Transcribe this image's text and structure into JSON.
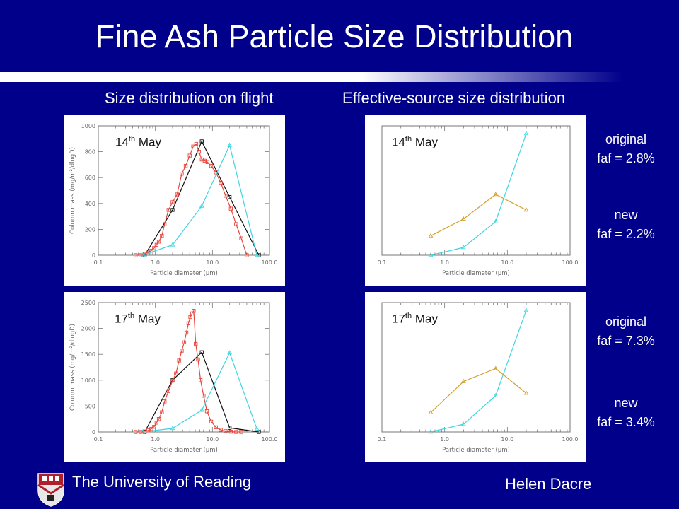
{
  "title": "Fine Ash Particle Size Distribution",
  "headers": {
    "left": "Size distribution on flight",
    "right": "Effective-source size distribution"
  },
  "labels": {
    "may14_num": "14",
    "may14_sup": "th",
    "may14_month": " May",
    "may17_num": "17",
    "may17_sup": "th",
    "may17_month": " May"
  },
  "faf": {
    "a_label": "original",
    "a_value": "faf = 2.8%",
    "b_label": "new",
    "b_value": "faf = 2.2%",
    "c_label": "original",
    "c_value": "faf = 7.3%",
    "d_label": "new",
    "d_value": "faf = 3.4%"
  },
  "footer": {
    "university": "The University of Reading",
    "author": "Helen Dacre"
  },
  "colors": {
    "background": "#00008B",
    "black": "#111111",
    "red": "#E8453C",
    "cyan": "#3ED5E0",
    "orange": "#D4A030"
  },
  "chart_data": [
    {
      "type": "line",
      "date": "14th May",
      "xlabel": "Particle diameter (μm)",
      "ylabel": "Column mass (mg/m²/dlogD)",
      "xscale": "log",
      "xlim": [
        0.1,
        100.0
      ],
      "ylim": [
        0,
        1000
      ],
      "xticks": [
        0.1,
        1.0,
        10.0,
        100.0
      ],
      "xtick_labels": [
        "0.1",
        "1.0",
        "10.0",
        "100.0"
      ],
      "yticks": [
        0,
        200,
        400,
        600,
        800,
        1000
      ],
      "ytick_labels": [
        "0",
        "200",
        "400",
        "600",
        "800",
        "1000"
      ],
      "series": [
        {
          "color": "black",
          "marker": "square",
          "x": [
            0.65,
            2.0,
            6.5,
            20,
            65
          ],
          "y": [
            0,
            350,
            880,
            450,
            0
          ]
        },
        {
          "color": "red",
          "marker": "square",
          "x": [
            0.45,
            0.55,
            0.65,
            0.75,
            0.85,
            0.95,
            1.05,
            1.15,
            1.3,
            1.45,
            1.7,
            2.0,
            2.4,
            2.9,
            3.4,
            4.0,
            4.6,
            5.2,
            5.8,
            6.5,
            7.3,
            8.2,
            9.5,
            11.5,
            14,
            17,
            21,
            26,
            32,
            40
          ],
          "y": [
            0,
            0,
            10,
            20,
            35,
            55,
            80,
            105,
            150,
            240,
            350,
            410,
            470,
            630,
            690,
            770,
            840,
            860,
            800,
            740,
            730,
            720,
            690,
            640,
            560,
            460,
            360,
            240,
            130,
            0
          ]
        },
        {
          "color": "cyan",
          "marker": "triangle",
          "x": [
            0.6,
            2.0,
            6.5,
            20,
            60
          ],
          "y": [
            0,
            80,
            380,
            850,
            0
          ]
        }
      ]
    },
    {
      "type": "line",
      "date": "14th May",
      "xlabel": "Particle diameter (μm)",
      "xscale": "log",
      "xlim": [
        0.1,
        100.0
      ],
      "ylim": [
        0,
        1000
      ],
      "xticks": [
        0.1,
        1.0,
        10.0,
        100.0
      ],
      "xtick_labels": [
        "0.1",
        "1.0",
        "10.0",
        "100.0"
      ],
      "series": [
        {
          "color": "orange",
          "marker": "triangle",
          "x": [
            0.6,
            2.0,
            6.5,
            20
          ],
          "y": [
            150,
            280,
            470,
            350
          ]
        },
        {
          "color": "cyan",
          "marker": "triangle",
          "x": [
            0.6,
            2.0,
            6.5,
            20
          ],
          "y": [
            0,
            60,
            260,
            940
          ]
        }
      ]
    },
    {
      "type": "line",
      "date": "17th May",
      "xlabel": "Particle diameter (μm)",
      "ylabel": "Column mass (mg/m²/dlogD)",
      "xscale": "log",
      "xlim": [
        0.1,
        100.0
      ],
      "ylim": [
        0,
        2500
      ],
      "xticks": [
        0.1,
        1.0,
        10.0,
        100.0
      ],
      "xtick_labels": [
        "0.1",
        "1.0",
        "10.0",
        "100.0"
      ],
      "yticks": [
        0,
        500,
        1000,
        1500,
        2000,
        2500
      ],
      "ytick_labels": [
        "0",
        "500",
        "1000",
        "1500",
        "2000",
        "2500"
      ],
      "series": [
        {
          "color": "black",
          "marker": "square",
          "x": [
            0.65,
            2.0,
            6.5,
            20,
            65
          ],
          "y": [
            0,
            1000,
            1540,
            80,
            0
          ]
        },
        {
          "color": "red",
          "marker": "square",
          "x": [
            0.45,
            0.55,
            0.65,
            0.75,
            0.85,
            0.95,
            1.05,
            1.15,
            1.3,
            1.45,
            1.7,
            2.0,
            2.3,
            2.6,
            2.9,
            3.2,
            3.5,
            3.8,
            4.1,
            4.4,
            4.7,
            5.1,
            5.6,
            6.2,
            7.0,
            8.0,
            9.5,
            11.5,
            14,
            17,
            21,
            26,
            32
          ],
          "y": [
            0,
            0,
            10,
            30,
            60,
            100,
            180,
            250,
            380,
            590,
            790,
            990,
            1130,
            1380,
            1570,
            1730,
            1920,
            2100,
            2220,
            2290,
            2340,
            1700,
            1400,
            1000,
            700,
            400,
            200,
            90,
            40,
            15,
            5,
            0,
            0
          ]
        },
        {
          "color": "cyan",
          "marker": "triangle",
          "x": [
            0.6,
            2.0,
            6.5,
            20,
            60
          ],
          "y": [
            0,
            70,
            420,
            1530,
            60
          ]
        }
      ]
    },
    {
      "type": "line",
      "date": "17th May",
      "xlabel": "Particle diameter (μm)",
      "xscale": "log",
      "xlim": [
        0.1,
        100.0
      ],
      "ylim": [
        0,
        1000
      ],
      "xticks": [
        0.1,
        1.0,
        10.0,
        100.0
      ],
      "xtick_labels": [
        "0.1",
        "1.0",
        "10.0",
        "100.0"
      ],
      "series": [
        {
          "color": "orange",
          "marker": "triangle",
          "x": [
            0.6,
            2.0,
            6.5,
            20
          ],
          "y": [
            150,
            390,
            490,
            300
          ]
        },
        {
          "color": "cyan",
          "marker": "triangle",
          "x": [
            0.6,
            2.0,
            6.5,
            20
          ],
          "y": [
            0,
            60,
            280,
            940
          ]
        }
      ]
    }
  ]
}
